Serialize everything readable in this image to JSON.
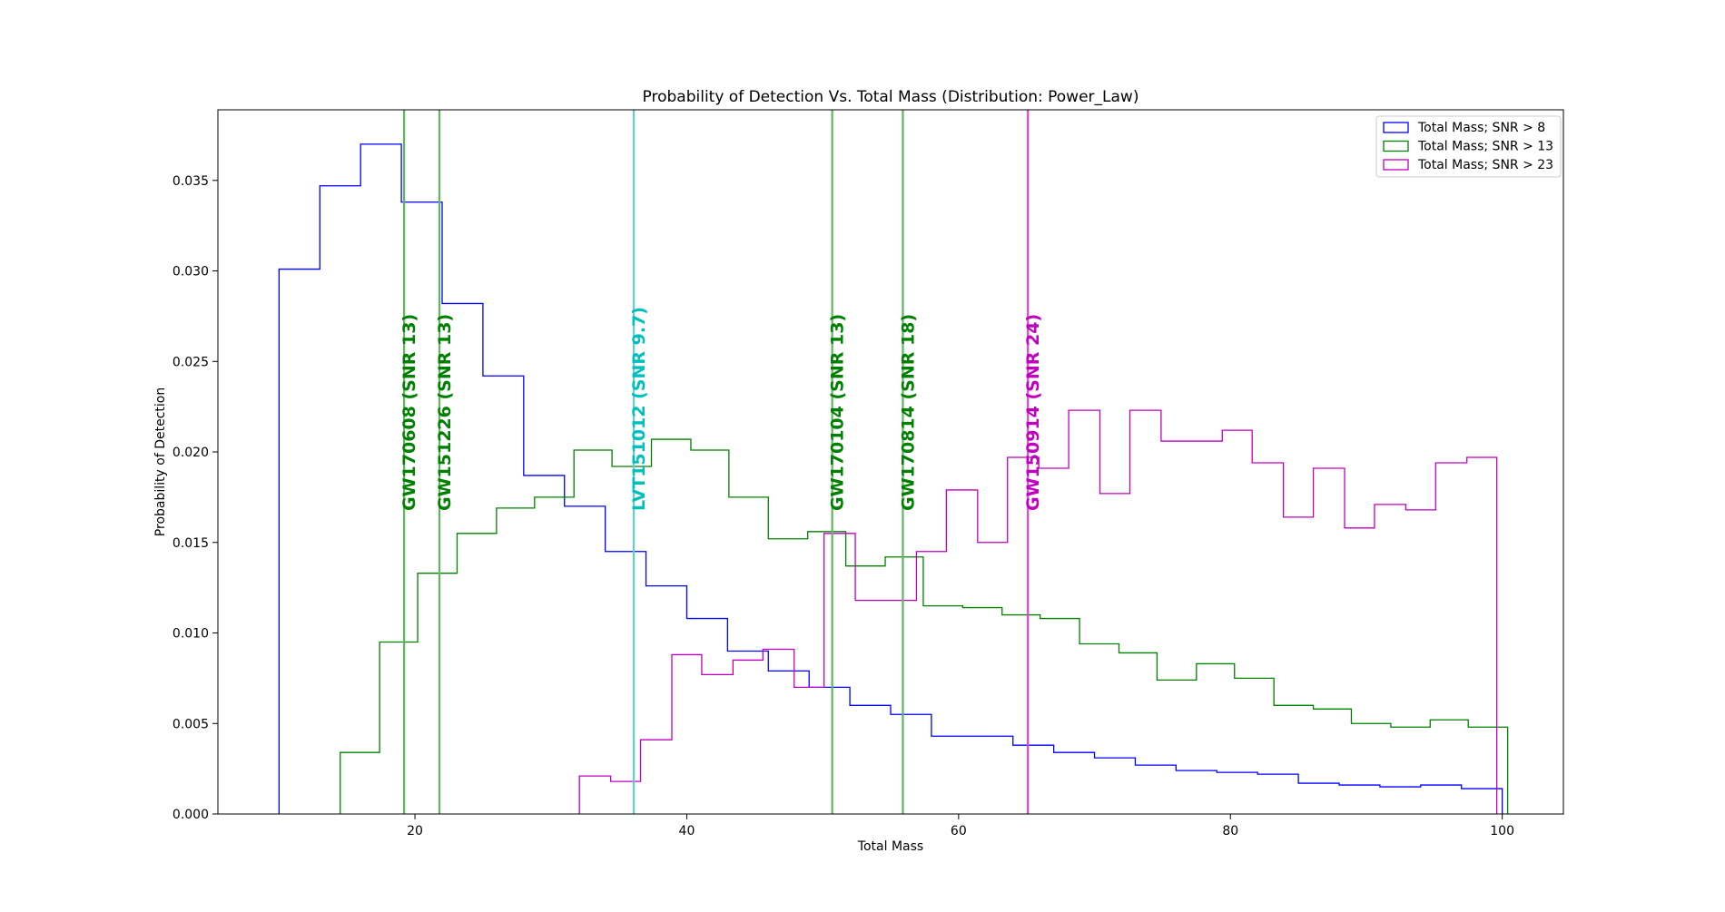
{
  "chart_data": {
    "type": "histogram",
    "title": "Probability of Detection Vs. Total Mass (Distribution: Power_Law)",
    "xlabel": "Total Mass",
    "ylabel": "Probability of Detection",
    "xlim": [
      5.5,
      104.5
    ],
    "ylim": [
      0,
      0.0389
    ],
    "xticks": [
      20,
      40,
      60,
      80,
      100
    ],
    "xtick_labels": [
      "20",
      "40",
      "60",
      "80",
      "100"
    ],
    "yticks": [
      0,
      0.005,
      0.01,
      0.015,
      0.02,
      0.025,
      0.03,
      0.035
    ],
    "ytick_labels": [
      "0.000",
      "0.005",
      "0.010",
      "0.015",
      "0.020",
      "0.025",
      "0.030",
      "0.035"
    ],
    "grid": false,
    "legend_position": "top-right",
    "series": [
      {
        "name": "Total Mass; SNR > 8",
        "color": "#0000ff",
        "edges": [
          10,
          13,
          16,
          19,
          22,
          25,
          28,
          31,
          34,
          37,
          40,
          43,
          46,
          49,
          52,
          55,
          58,
          61,
          64,
          67,
          70,
          73,
          76,
          79,
          82,
          85,
          88,
          91,
          94,
          97,
          100
        ],
        "values": [
          0.0301,
          0.0347,
          0.037,
          0.0338,
          0.0282,
          0.0242,
          0.0187,
          0.017,
          0.0145,
          0.0126,
          0.0108,
          0.009,
          0.0079,
          0.007,
          0.006,
          0.0055,
          0.0043,
          0.0043,
          0.0038,
          0.0034,
          0.0031,
          0.0027,
          0.0024,
          0.0023,
          0.0022,
          0.0017,
          0.0016,
          0.0015,
          0.0016,
          0.0014
        ]
      },
      {
        "name": "Total Mass; SNR > 13",
        "color": "#008000",
        "edges": [
          14.5,
          17.4,
          20.2,
          23.1,
          26.0,
          28.8,
          31.7,
          34.5,
          37.4,
          40.3,
          43.1,
          46.0,
          48.9,
          51.7,
          54.6,
          57.4,
          60.3,
          63.2,
          66.0,
          68.9,
          71.8,
          74.6,
          77.5,
          80.3,
          83.2,
          86.1,
          88.9,
          91.8,
          94.7,
          97.5,
          100.4
        ],
        "values": [
          0.0034,
          0.0095,
          0.0133,
          0.0155,
          0.0169,
          0.0175,
          0.0201,
          0.0192,
          0.0207,
          0.0201,
          0.0175,
          0.0152,
          0.0156,
          0.0137,
          0.0142,
          0.0115,
          0.0114,
          0.011,
          0.0108,
          0.0094,
          0.0089,
          0.0074,
          0.0083,
          0.0075,
          0.006,
          0.0058,
          0.005,
          0.0048,
          0.0052,
          0.0048
        ]
      },
      {
        "name": "Total Mass; SNR > 23",
        "color": "#c000c0",
        "edges": [
          32.1,
          34.4,
          36.6,
          38.9,
          41.1,
          43.4,
          45.6,
          47.9,
          50.1,
          52.4,
          54.6,
          56.9,
          59.1,
          61.4,
          63.6,
          65.9,
          68.1,
          70.4,
          72.6,
          74.9,
          77.1,
          79.4,
          81.6,
          83.9,
          86.1,
          88.4,
          90.6,
          92.9,
          95.1,
          97.4,
          99.6
        ],
        "values": [
          0.0021,
          0.0018,
          0.0041,
          0.0088,
          0.0077,
          0.0085,
          0.0091,
          0.007,
          0.0155,
          0.0118,
          0.0118,
          0.0145,
          0.0179,
          0.015,
          0.0197,
          0.0191,
          0.0223,
          0.0177,
          0.0223,
          0.0206,
          0.0206,
          0.0212,
          0.0194,
          0.0164,
          0.0191,
          0.0158,
          0.0171,
          0.0168,
          0.0194,
          0.0197
        ]
      }
    ],
    "vlines": [
      {
        "x": 19.2,
        "label": "GW170608 (SNR 13)",
        "color": "#008000",
        "line_color": "#5cb85c"
      },
      {
        "x": 21.8,
        "label": "GW151226 (SNR 13)",
        "color": "#008000",
        "line_color": "#5cb85c"
      },
      {
        "x": 36.1,
        "label": "LVT151012 (SNR 9.7)",
        "color": "#00bfbf",
        "line_color": "#60d0c8"
      },
      {
        "x": 50.7,
        "label": "GW170104 (SNR 13)",
        "color": "#008000",
        "line_color": "#5cb85c"
      },
      {
        "x": 55.9,
        "label": "GW170814 (SNR 18)",
        "color": "#008000",
        "line_color": "#5cb85c"
      },
      {
        "x": 65.1,
        "label": "GW150914 (SNR 24)",
        "color": "#c000c0",
        "line_color": "#e040e0"
      }
    ]
  }
}
